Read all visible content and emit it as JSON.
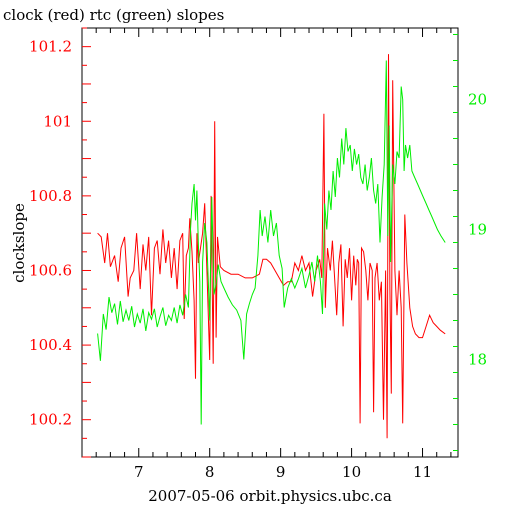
{
  "chart_data": {
    "type": "line",
    "title": "clock (red) rtc (green) slopes",
    "xlabel": "2007-05-06  orbit.physics.ubc.ca",
    "ylabel": "clockslope",
    "xlim": [
      6.2,
      11.5
    ],
    "ylim_left": [
      100.1,
      101.25
    ],
    "ylim_right": [
      17.25,
      20.55
    ],
    "x_ticks": [
      "7",
      "8",
      "9",
      "10",
      "11"
    ],
    "y_ticks_left": [
      "100.2",
      "100.4",
      "100.6",
      "100.8",
      "101",
      "101.2"
    ],
    "y_ticks_right": [
      "18",
      "19",
      "20"
    ],
    "grid": false,
    "series": [
      {
        "name": "clock",
        "axis": "left",
        "color": "#ff0000",
        "points": [
          [
            6.42,
            100.7
          ],
          [
            6.47,
            100.69
          ],
          [
            6.52,
            100.62
          ],
          [
            6.56,
            100.7
          ],
          [
            6.6,
            100.61
          ],
          [
            6.66,
            100.64
          ],
          [
            6.71,
            100.57
          ],
          [
            6.75,
            100.66
          ],
          [
            6.8,
            100.69
          ],
          [
            6.85,
            100.53
          ],
          [
            6.88,
            100.58
          ],
          [
            6.93,
            100.6
          ],
          [
            6.97,
            100.7
          ],
          [
            7.02,
            100.55
          ],
          [
            7.06,
            100.67
          ],
          [
            7.1,
            100.6
          ],
          [
            7.14,
            100.69
          ],
          [
            7.18,
            100.48
          ],
          [
            7.22,
            100.66
          ],
          [
            7.26,
            100.68
          ],
          [
            7.3,
            100.59
          ],
          [
            7.34,
            100.71
          ],
          [
            7.38,
            100.62
          ],
          [
            7.42,
            100.68
          ],
          [
            7.46,
            100.58
          ],
          [
            7.5,
            100.66
          ],
          [
            7.54,
            100.55
          ],
          [
            7.58,
            100.68
          ],
          [
            7.62,
            100.7
          ],
          [
            7.64,
            100.47
          ],
          [
            7.67,
            100.64
          ],
          [
            7.7,
            100.66
          ],
          [
            7.72,
            100.74
          ],
          [
            7.75,
            100.65
          ],
          [
            7.78,
            100.52
          ],
          [
            7.8,
            100.31
          ],
          [
            7.82,
            100.7
          ],
          [
            7.84,
            100.62
          ],
          [
            7.87,
            100.66
          ],
          [
            7.9,
            100.7
          ],
          [
            7.93,
            100.78
          ],
          [
            7.96,
            100.6
          ],
          [
            8.0,
            100.36
          ],
          [
            8.02,
            100.8
          ],
          [
            8.05,
            100.35
          ],
          [
            8.07,
            101.0
          ],
          [
            8.09,
            100.42
          ],
          [
            8.11,
            100.69
          ],
          [
            8.15,
            100.61
          ],
          [
            8.2,
            100.6
          ],
          [
            8.3,
            100.59
          ],
          [
            8.4,
            100.59
          ],
          [
            8.5,
            100.58
          ],
          [
            8.6,
            100.58
          ],
          [
            8.7,
            100.59
          ],
          [
            8.75,
            100.63
          ],
          [
            8.8,
            100.63
          ],
          [
            8.86,
            100.62
          ],
          [
            8.92,
            100.6
          ],
          [
            8.98,
            100.58
          ],
          [
            9.04,
            100.56
          ],
          [
            9.1,
            100.57
          ],
          [
            9.15,
            100.57
          ],
          [
            9.2,
            100.62
          ],
          [
            9.25,
            100.6
          ],
          [
            9.3,
            100.64
          ],
          [
            9.35,
            100.6
          ],
          [
            9.4,
            100.62
          ],
          [
            9.45,
            100.53
          ],
          [
            9.5,
            100.6
          ],
          [
            9.55,
            100.63
          ],
          [
            9.58,
            100.58
          ],
          [
            9.61,
            101.02
          ],
          [
            9.63,
            100.5
          ],
          [
            9.66,
            100.66
          ],
          [
            9.7,
            100.6
          ],
          [
            9.73,
            100.68
          ],
          [
            9.76,
            100.58
          ],
          [
            9.79,
            100.48
          ],
          [
            9.82,
            100.62
          ],
          [
            9.85,
            100.67
          ],
          [
            9.88,
            100.45
          ],
          [
            9.91,
            100.63
          ],
          [
            9.94,
            100.58
          ],
          [
            9.97,
            100.66
          ],
          [
            10.0,
            100.52
          ],
          [
            10.03,
            100.64
          ],
          [
            10.06,
            100.56
          ],
          [
            10.08,
            100.63
          ],
          [
            10.1,
            100.62
          ],
          [
            10.12,
            100.19
          ],
          [
            10.14,
            100.66
          ],
          [
            10.17,
            100.65
          ],
          [
            10.2,
            100.6
          ],
          [
            10.23,
            100.52
          ],
          [
            10.26,
            100.62
          ],
          [
            10.29,
            100.6
          ],
          [
            10.31,
            100.22
          ],
          [
            10.33,
            100.58
          ],
          [
            10.36,
            100.62
          ],
          [
            10.39,
            100.52
          ],
          [
            10.42,
            100.57
          ],
          [
            10.45,
            100.2
          ],
          [
            10.48,
            100.6
          ],
          [
            10.5,
            100.15
          ],
          [
            10.52,
            101.18
          ],
          [
            10.54,
            100.55
          ],
          [
            10.56,
            100.27
          ],
          [
            10.58,
            101.11
          ],
          [
            10.61,
            100.6
          ],
          [
            10.64,
            100.48
          ],
          [
            10.67,
            100.6
          ],
          [
            10.7,
            100.5
          ],
          [
            10.72,
            100.19
          ],
          [
            10.75,
            100.75
          ],
          [
            10.78,
            100.62
          ],
          [
            10.82,
            100.5
          ],
          [
            10.86,
            100.45
          ],
          [
            10.9,
            100.43
          ],
          [
            10.95,
            100.42
          ],
          [
            11.0,
            100.42
          ],
          [
            11.05,
            100.45
          ],
          [
            11.1,
            100.48
          ],
          [
            11.15,
            100.46
          ],
          [
            11.2,
            100.45
          ],
          [
            11.25,
            100.44
          ],
          [
            11.32,
            100.43
          ]
        ]
      },
      {
        "name": "rtc",
        "axis": "right",
        "color": "#00ee00",
        "points": [
          [
            6.42,
            18.2
          ],
          [
            6.46,
            17.99
          ],
          [
            6.5,
            18.35
          ],
          [
            6.54,
            18.23
          ],
          [
            6.58,
            18.48
          ],
          [
            6.62,
            18.36
          ],
          [
            6.66,
            18.43
          ],
          [
            6.7,
            18.27
          ],
          [
            6.74,
            18.45
          ],
          [
            6.78,
            18.29
          ],
          [
            6.82,
            18.38
          ],
          [
            6.86,
            18.3
          ],
          [
            6.9,
            18.41
          ],
          [
            6.94,
            18.25
          ],
          [
            6.98,
            18.35
          ],
          [
            7.02,
            18.28
          ],
          [
            7.06,
            18.39
          ],
          [
            7.1,
            18.22
          ],
          [
            7.14,
            18.36
          ],
          [
            7.18,
            18.31
          ],
          [
            7.22,
            18.39
          ],
          [
            7.26,
            18.25
          ],
          [
            7.3,
            18.33
          ],
          [
            7.34,
            18.4
          ],
          [
            7.38,
            18.26
          ],
          [
            7.42,
            18.34
          ],
          [
            7.46,
            18.3
          ],
          [
            7.5,
            18.4
          ],
          [
            7.54,
            18.28
          ],
          [
            7.58,
            18.42
          ],
          [
            7.62,
            18.34
          ],
          [
            7.66,
            18.5
          ],
          [
            7.7,
            18.4
          ],
          [
            7.73,
            19.0
          ],
          [
            7.75,
            19.2
          ],
          [
            7.78,
            19.35
          ],
          [
            7.8,
            19.07
          ],
          [
            7.82,
            19.3
          ],
          [
            7.84,
            18.9
          ],
          [
            7.86,
            18.6
          ],
          [
            7.88,
            17.5
          ],
          [
            7.9,
            18.75
          ],
          [
            7.93,
            19.05
          ],
          [
            7.96,
            18.9
          ],
          [
            8.0,
            18.3
          ],
          [
            8.03,
            19.25
          ],
          [
            8.06,
            18.5
          ],
          [
            8.09,
            18.58
          ],
          [
            8.12,
            18.73
          ],
          [
            8.16,
            18.6
          ],
          [
            8.2,
            18.55
          ],
          [
            8.26,
            18.48
          ],
          [
            8.32,
            18.42
          ],
          [
            8.38,
            18.38
          ],
          [
            8.44,
            18.3
          ],
          [
            8.48,
            18.0
          ],
          [
            8.52,
            18.35
          ],
          [
            8.56,
            18.43
          ],
          [
            8.6,
            18.5
          ],
          [
            8.64,
            18.55
          ],
          [
            8.68,
            18.8
          ],
          [
            8.71,
            19.15
          ],
          [
            8.74,
            18.95
          ],
          [
            8.78,
            19.1
          ],
          [
            8.82,
            18.9
          ],
          [
            8.86,
            19.15
          ],
          [
            8.9,
            18.95
          ],
          [
            8.94,
            19.05
          ],
          [
            8.98,
            18.8
          ],
          [
            9.02,
            18.7
          ],
          [
            9.05,
            18.4
          ],
          [
            9.1,
            18.55
          ],
          [
            9.15,
            18.62
          ],
          [
            9.2,
            18.55
          ],
          [
            9.25,
            18.62
          ],
          [
            9.3,
            18.7
          ],
          [
            9.35,
            18.55
          ],
          [
            9.4,
            18.65
          ],
          [
            9.44,
            18.75
          ],
          [
            9.48,
            18.6
          ],
          [
            9.52,
            18.8
          ],
          [
            9.56,
            18.6
          ],
          [
            9.59,
            18.35
          ],
          [
            9.62,
            19.2
          ],
          [
            9.65,
            19.0
          ],
          [
            9.68,
            19.3
          ],
          [
            9.71,
            19.15
          ],
          [
            9.74,
            19.45
          ],
          [
            9.77,
            19.25
          ],
          [
            9.8,
            19.55
          ],
          [
            9.83,
            19.4
          ],
          [
            9.86,
            19.7
          ],
          [
            9.89,
            19.5
          ],
          [
            9.92,
            19.78
          ],
          [
            9.95,
            19.6
          ],
          [
            9.98,
            19.65
          ],
          [
            10.01,
            19.45
          ],
          [
            10.04,
            19.62
          ],
          [
            10.07,
            19.5
          ],
          [
            10.1,
            19.58
          ],
          [
            10.13,
            19.4
          ],
          [
            10.16,
            19.35
          ],
          [
            10.19,
            19.5
          ],
          [
            10.22,
            19.3
          ],
          [
            10.25,
            19.4
          ],
          [
            10.28,
            19.55
          ],
          [
            10.31,
            19.3
          ],
          [
            10.34,
            19.2
          ],
          [
            10.37,
            19.35
          ],
          [
            10.4,
            18.9
          ],
          [
            10.43,
            19.25
          ],
          [
            10.46,
            19.5
          ],
          [
            10.49,
            20.3
          ],
          [
            10.51,
            18.95
          ],
          [
            10.53,
            19.8
          ],
          [
            10.55,
            18.75
          ],
          [
            10.58,
            19.5
          ],
          [
            10.61,
            19.35
          ],
          [
            10.64,
            19.6
          ],
          [
            10.67,
            19.55
          ],
          [
            10.7,
            20.1
          ],
          [
            10.72,
            20.0
          ],
          [
            10.74,
            19.45
          ],
          [
            10.76,
            19.65
          ],
          [
            10.79,
            19.55
          ],
          [
            10.82,
            19.65
          ],
          [
            10.85,
            19.45
          ],
          [
            10.89,
            19.4
          ],
          [
            10.93,
            19.35
          ],
          [
            10.97,
            19.3
          ],
          [
            11.01,
            19.25
          ],
          [
            11.05,
            19.2
          ],
          [
            11.09,
            19.15
          ],
          [
            11.13,
            19.1
          ],
          [
            11.17,
            19.05
          ],
          [
            11.21,
            19.0
          ],
          [
            11.26,
            18.95
          ],
          [
            11.32,
            18.9
          ]
        ]
      }
    ]
  }
}
